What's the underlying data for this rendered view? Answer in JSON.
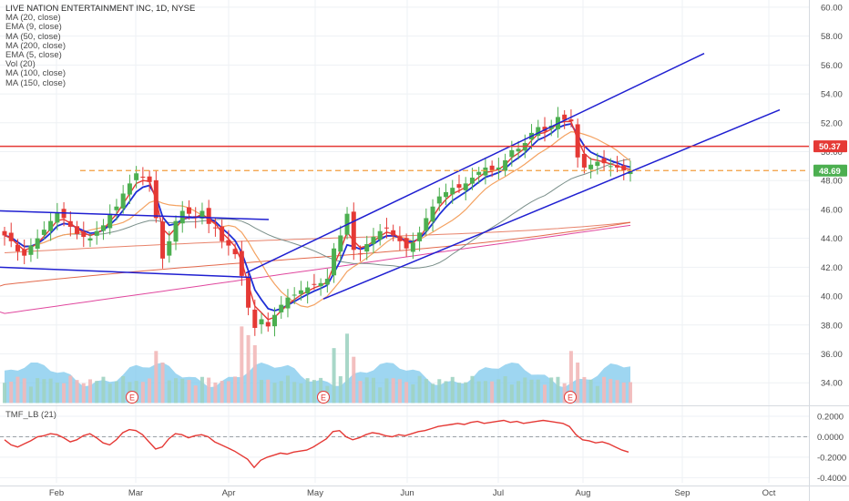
{
  "legend": {
    "title": "LIVE NATION ENTERTAINMENT INC, 1D, NYSE",
    "items": [
      "MA (20, close)",
      "EMA (9, close)",
      "MA (50, close)",
      "MA (200, close)",
      "EMA (5, close)",
      "Vol (20)",
      "MA (100, close)",
      "MA (150, close)"
    ]
  },
  "indicator_label": "TMF_LB (21)",
  "colors": {
    "up": "#4caf50",
    "down": "#e53935",
    "ma20": "#f4a261",
    "ema9": "#1e2fd6",
    "ma50": "#7a8f8a",
    "ma200": "#e0479e",
    "ema5": "#e53935",
    "ma100": "#e05a3a",
    "ma150": "#e05a3a",
    "volume": "#7ec8ec",
    "channel": "#1f1fd1",
    "resistance": "#e53935",
    "support_dashed": "#f39c3d",
    "tmf": "#e53935"
  },
  "chart_data": [
    {
      "type": "candlestick",
      "title": "LIVE NATION ENTERTAINMENT INC, 1D, NYSE",
      "x_ticks": [
        "Feb",
        "Mar",
        "Apr",
        "May",
        "Jun",
        "Jul",
        "Aug",
        "Sep",
        "Oct"
      ],
      "y_ticks": [
        "60.00",
        "58.00",
        "56.00",
        "54.00",
        "52.00",
        "50.00",
        "48.00",
        "46.00",
        "44.00",
        "42.00",
        "40.00",
        "38.00",
        "36.00",
        "34.00"
      ],
      "ylim": [
        32.5,
        60.5
      ],
      "price_labels": [
        {
          "label": "50.37",
          "value": 50.37,
          "color": "#e53935"
        },
        {
          "label": "48.69",
          "value": 48.69,
          "color": "#4caf50"
        }
      ],
      "close_series": [
        44.2,
        43.8,
        43.1,
        42.8,
        43.5,
        44.0,
        44.6,
        45.2,
        45.8,
        45.4,
        44.8,
        44.3,
        44.1,
        44.0,
        44.5,
        44.9,
        45.7,
        46.2,
        47.1,
        47.8,
        48.5,
        48.2,
        47.9,
        45.4,
        42.6,
        43.8,
        45.2,
        45.9,
        45.7,
        45.4,
        45.9,
        45.0,
        44.7,
        43.8,
        43.5,
        42.9,
        41.4,
        39.2,
        37.8,
        38.4,
        37.9,
        38.7,
        39.4,
        39.9,
        40.1,
        40.4,
        40.6,
        40.8,
        40.9,
        41.2,
        43.3,
        44.2,
        45.7,
        43.2,
        42.9,
        43.6,
        44.1,
        44.5,
        44.7,
        44.2,
        43.8,
        43.3,
        43.7,
        44.4,
        45.4,
        46.2,
        46.9,
        47.2,
        47.5,
        47.5,
        47.8,
        48.2,
        48.6,
        48.9,
        48.7,
        48.9,
        49.4,
        50.1,
        50.2,
        50.6,
        51.3,
        51.7,
        51.4,
        51.8,
        52.4,
        52.2,
        52.1,
        49.6,
        48.9,
        49.1,
        49.3,
        49.2,
        49.0,
        48.9,
        48.7,
        48.69
      ],
      "resistance_levels": [
        50.37
      ],
      "dashed_levels": [
        48.69
      ],
      "event_markers": [
        "E",
        "E",
        "E"
      ],
      "grid": true
    },
    {
      "type": "line",
      "name": "TMF_LB (21)",
      "y_ticks": [
        "0.2000",
        "0.0000",
        "-0.2000",
        "-0.4000"
      ],
      "ylim": [
        -0.45,
        0.28
      ],
      "values": [
        -0.03,
        -0.08,
        -0.1,
        -0.07,
        -0.04,
        0.0,
        0.01,
        0.03,
        0.02,
        -0.01,
        -0.05,
        -0.03,
        0.01,
        0.03,
        -0.01,
        -0.06,
        -0.08,
        -0.03,
        0.04,
        0.07,
        0.06,
        0.02,
        -0.05,
        -0.12,
        -0.1,
        -0.02,
        0.03,
        0.02,
        -0.01,
        0.01,
        0.02,
        0.0,
        -0.05,
        -0.08,
        -0.11,
        -0.14,
        -0.18,
        -0.22,
        -0.3,
        -0.23,
        -0.2,
        -0.18,
        -0.16,
        -0.17,
        -0.15,
        -0.14,
        -0.13,
        -0.1,
        -0.06,
        -0.02,
        0.05,
        0.06,
        0.0,
        -0.03,
        -0.01,
        0.02,
        0.04,
        0.03,
        0.01,
        0.0,
        0.02,
        0.01,
        0.03,
        0.05,
        0.06,
        0.08,
        0.1,
        0.11,
        0.12,
        0.13,
        0.12,
        0.14,
        0.15,
        0.13,
        0.14,
        0.15,
        0.16,
        0.14,
        0.15,
        0.13,
        0.14,
        0.15,
        0.16,
        0.15,
        0.14,
        0.13,
        0.1,
        0.02,
        -0.03,
        -0.04,
        -0.06,
        -0.05,
        -0.07,
        -0.1,
        -0.13,
        -0.15
      ]
    }
  ]
}
